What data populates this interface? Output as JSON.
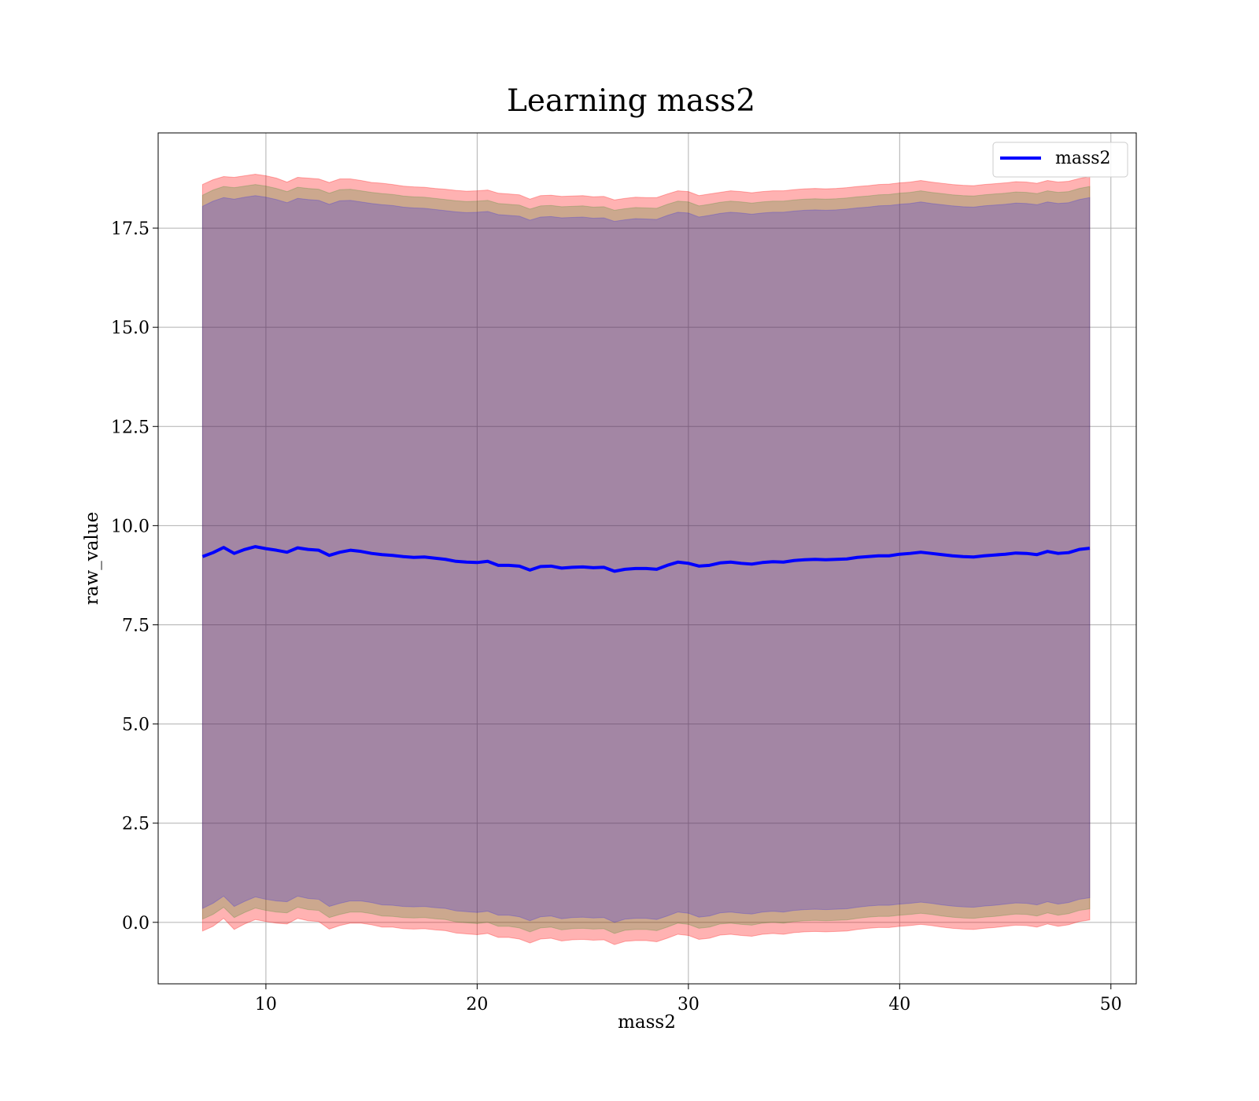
{
  "chart_data": {
    "type": "line",
    "title": "Learning mass2",
    "xlabel": "mass2",
    "ylabel": "raw_value",
    "xlim": [
      4.9,
      51.2
    ],
    "ylim": [
      -1.55,
      19.9
    ],
    "xticks": [
      10,
      20,
      30,
      40,
      50
    ],
    "yticks": [
      0.0,
      2.5,
      5.0,
      7.5,
      10.0,
      12.5,
      15.0,
      17.5
    ],
    "xtick_labels": [
      "10",
      "20",
      "30",
      "40",
      "50"
    ],
    "ytick_labels": [
      "0.0",
      "2.5",
      "5.0",
      "7.5",
      "10.0",
      "12.5",
      "15.0",
      "17.5"
    ],
    "grid": true,
    "legend": {
      "location": "upper right",
      "entries": [
        "mass2"
      ]
    },
    "series": [
      {
        "name": "mass2",
        "color": "#0000ff",
        "x": [
          7.0,
          7.5,
          8.0,
          8.5,
          9.0,
          9.5,
          10.0,
          10.5,
          11.0,
          11.5,
          12.0,
          12.5,
          13.0,
          13.5,
          14.0,
          14.5,
          15.0,
          15.5,
          16.0,
          16.5,
          17.0,
          17.5,
          18.0,
          18.5,
          19.0,
          19.5,
          20.0,
          20.5,
          21.0,
          21.5,
          22.0,
          22.5,
          23.0,
          23.5,
          24.0,
          24.5,
          25.0,
          25.5,
          26.0,
          26.5,
          27.0,
          27.5,
          28.0,
          28.5,
          29.0,
          29.5,
          30.0,
          30.5,
          31.0,
          31.5,
          32.0,
          32.5,
          33.0,
          33.5,
          34.0,
          34.5,
          35.0,
          35.5,
          36.0,
          36.5,
          37.0,
          37.5,
          38.0,
          38.5,
          39.0,
          39.5,
          40.0,
          40.5,
          41.0,
          41.5,
          42.0,
          42.5,
          43.0,
          43.5,
          44.0,
          44.5,
          45.0,
          45.5,
          46.0,
          46.5,
          47.0,
          47.5,
          48.0,
          48.5,
          49.0
        ],
        "y": [
          9.22,
          9.32,
          9.45,
          9.3,
          9.4,
          9.47,
          9.42,
          9.38,
          9.33,
          9.44,
          9.4,
          9.38,
          9.25,
          9.33,
          9.38,
          9.35,
          9.3,
          9.27,
          9.25,
          9.22,
          9.2,
          9.21,
          9.18,
          9.15,
          9.1,
          9.08,
          9.07,
          9.1,
          9.0,
          9.0,
          8.98,
          8.88,
          8.97,
          8.98,
          8.93,
          8.95,
          8.96,
          8.94,
          8.95,
          8.85,
          8.9,
          8.92,
          8.92,
          8.9,
          9.0,
          9.08,
          9.05,
          8.98,
          9.0,
          9.06,
          9.08,
          9.05,
          9.03,
          9.07,
          9.09,
          9.08,
          9.12,
          9.14,
          9.15,
          9.14,
          9.15,
          9.16,
          9.2,
          9.22,
          9.24,
          9.24,
          9.28,
          9.3,
          9.33,
          9.3,
          9.27,
          9.24,
          9.22,
          9.21,
          9.24,
          9.26,
          9.28,
          9.31,
          9.3,
          9.27,
          9.35,
          9.3,
          9.32,
          9.4,
          9.43
        ]
      }
    ],
    "bands": [
      {
        "color": "#ff0000",
        "opacity": 0.3,
        "upper": [
          18.6,
          18.72,
          18.8,
          18.78,
          18.82,
          18.86,
          18.82,
          18.76,
          18.66,
          18.78,
          18.76,
          18.74,
          18.65,
          18.74,
          18.74,
          18.7,
          18.65,
          18.63,
          18.6,
          18.56,
          18.54,
          18.53,
          18.5,
          18.48,
          18.45,
          18.43,
          18.44,
          18.46,
          18.38,
          18.36,
          18.34,
          18.23,
          18.32,
          18.33,
          18.3,
          18.31,
          18.32,
          18.29,
          18.3,
          18.21,
          18.25,
          18.28,
          18.27,
          18.27,
          18.36,
          18.44,
          18.42,
          18.32,
          18.36,
          18.4,
          18.44,
          18.42,
          18.39,
          18.42,
          18.44,
          18.44,
          18.47,
          18.49,
          18.5,
          18.49,
          18.5,
          18.52,
          18.55,
          18.57,
          18.6,
          18.61,
          18.64,
          18.66,
          18.7,
          18.66,
          18.63,
          18.6,
          18.58,
          18.57,
          18.6,
          18.62,
          18.64,
          18.67,
          18.66,
          18.63,
          18.7,
          18.66,
          18.68,
          18.75,
          18.8
        ],
        "lower": [
          -0.22,
          -0.1,
          0.1,
          -0.18,
          -0.04,
          0.07,
          0.02,
          -0.02,
          -0.04,
          0.1,
          0.04,
          0.02,
          -0.17,
          -0.08,
          -0.02,
          -0.02,
          -0.06,
          -0.12,
          -0.12,
          -0.16,
          -0.17,
          -0.16,
          -0.19,
          -0.21,
          -0.27,
          -0.29,
          -0.31,
          -0.28,
          -0.38,
          -0.38,
          -0.42,
          -0.52,
          -0.42,
          -0.4,
          -0.47,
          -0.44,
          -0.43,
          -0.45,
          -0.44,
          -0.56,
          -0.48,
          -0.46,
          -0.46,
          -0.49,
          -0.4,
          -0.3,
          -0.33,
          -0.43,
          -0.4,
          -0.32,
          -0.3,
          -0.33,
          -0.35,
          -0.3,
          -0.28,
          -0.3,
          -0.26,
          -0.24,
          -0.23,
          -0.24,
          -0.23,
          -0.22,
          -0.18,
          -0.15,
          -0.13,
          -0.13,
          -0.1,
          -0.08,
          -0.05,
          -0.08,
          -0.12,
          -0.15,
          -0.17,
          -0.18,
          -0.15,
          -0.13,
          -0.1,
          -0.07,
          -0.08,
          -0.12,
          -0.04,
          -0.1,
          -0.06,
          0.02,
          0.06
        ]
      },
      {
        "color": "#008000",
        "opacity": 0.2,
        "upper": [
          18.33,
          18.46,
          18.55,
          18.52,
          18.56,
          18.6,
          18.56,
          18.5,
          18.42,
          18.53,
          18.5,
          18.48,
          18.38,
          18.47,
          18.48,
          18.44,
          18.4,
          18.37,
          18.35,
          18.31,
          18.29,
          18.28,
          18.25,
          18.22,
          18.19,
          18.17,
          18.18,
          18.2,
          18.12,
          18.1,
          18.08,
          17.98,
          18.06,
          18.07,
          18.04,
          18.05,
          18.06,
          18.03,
          18.04,
          17.95,
          17.99,
          18.02,
          18.01,
          18.0,
          18.1,
          18.18,
          18.16,
          18.06,
          18.1,
          18.15,
          18.18,
          18.16,
          18.13,
          18.16,
          18.18,
          18.18,
          18.21,
          18.23,
          18.24,
          18.23,
          18.24,
          18.26,
          18.29,
          18.31,
          18.34,
          18.35,
          18.38,
          18.4,
          18.44,
          18.4,
          18.37,
          18.34,
          18.32,
          18.31,
          18.34,
          18.36,
          18.38,
          18.41,
          18.4,
          18.37,
          18.44,
          18.4,
          18.42,
          18.5,
          18.55
        ],
        "lower": [
          0.08,
          0.2,
          0.38,
          0.12,
          0.25,
          0.36,
          0.3,
          0.26,
          0.24,
          0.38,
          0.32,
          0.3,
          0.12,
          0.2,
          0.26,
          0.26,
          0.22,
          0.16,
          0.15,
          0.12,
          0.11,
          0.12,
          0.09,
          0.07,
          0.01,
          -0.01,
          -0.03,
          0.0,
          -0.1,
          -0.1,
          -0.14,
          -0.24,
          -0.14,
          -0.12,
          -0.19,
          -0.16,
          -0.15,
          -0.17,
          -0.16,
          -0.28,
          -0.2,
          -0.18,
          -0.18,
          -0.21,
          -0.12,
          -0.02,
          -0.05,
          -0.15,
          -0.12,
          -0.04,
          -0.02,
          -0.05,
          -0.07,
          -0.02,
          0.0,
          -0.02,
          0.02,
          0.04,
          0.05,
          0.04,
          0.05,
          0.06,
          0.1,
          0.13,
          0.15,
          0.15,
          0.18,
          0.2,
          0.23,
          0.2,
          0.16,
          0.13,
          0.11,
          0.1,
          0.13,
          0.15,
          0.18,
          0.21,
          0.2,
          0.16,
          0.24,
          0.18,
          0.22,
          0.3,
          0.34
        ]
      },
      {
        "color": "#0000ff",
        "opacity": 0.2,
        "upper": [
          18.05,
          18.18,
          18.27,
          18.23,
          18.28,
          18.32,
          18.28,
          18.22,
          18.14,
          18.25,
          18.22,
          18.2,
          18.1,
          18.19,
          18.2,
          18.16,
          18.12,
          18.09,
          18.07,
          18.03,
          18.01,
          18.0,
          17.97,
          17.94,
          17.91,
          17.89,
          17.9,
          17.92,
          17.84,
          17.82,
          17.8,
          17.7,
          17.78,
          17.79,
          17.76,
          17.77,
          17.78,
          17.75,
          17.76,
          17.67,
          17.71,
          17.74,
          17.73,
          17.72,
          17.82,
          17.9,
          17.88,
          17.78,
          17.82,
          17.87,
          17.9,
          17.88,
          17.85,
          17.88,
          17.9,
          17.9,
          17.93,
          17.95,
          17.96,
          17.95,
          17.96,
          17.98,
          18.01,
          18.03,
          18.06,
          18.07,
          18.1,
          18.12,
          18.16,
          18.12,
          18.09,
          18.06,
          18.04,
          18.03,
          18.06,
          18.08,
          18.1,
          18.13,
          18.12,
          18.09,
          18.16,
          18.12,
          18.14,
          18.22,
          18.27
        ],
        "lower": [
          0.35,
          0.48,
          0.66,
          0.4,
          0.53,
          0.64,
          0.58,
          0.54,
          0.52,
          0.66,
          0.6,
          0.58,
          0.4,
          0.48,
          0.54,
          0.54,
          0.5,
          0.44,
          0.43,
          0.4,
          0.39,
          0.4,
          0.37,
          0.35,
          0.29,
          0.27,
          0.25,
          0.28,
          0.18,
          0.18,
          0.14,
          0.04,
          0.14,
          0.16,
          0.09,
          0.12,
          0.13,
          0.11,
          0.12,
          0.0,
          0.08,
          0.1,
          0.1,
          0.07,
          0.16,
          0.26,
          0.23,
          0.13,
          0.16,
          0.24,
          0.26,
          0.23,
          0.21,
          0.26,
          0.28,
          0.26,
          0.3,
          0.32,
          0.33,
          0.32,
          0.33,
          0.34,
          0.38,
          0.41,
          0.43,
          0.43,
          0.46,
          0.48,
          0.51,
          0.48,
          0.44,
          0.41,
          0.39,
          0.38,
          0.41,
          0.43,
          0.46,
          0.49,
          0.48,
          0.44,
          0.52,
          0.46,
          0.5,
          0.58,
          0.62
        ]
      }
    ]
  }
}
